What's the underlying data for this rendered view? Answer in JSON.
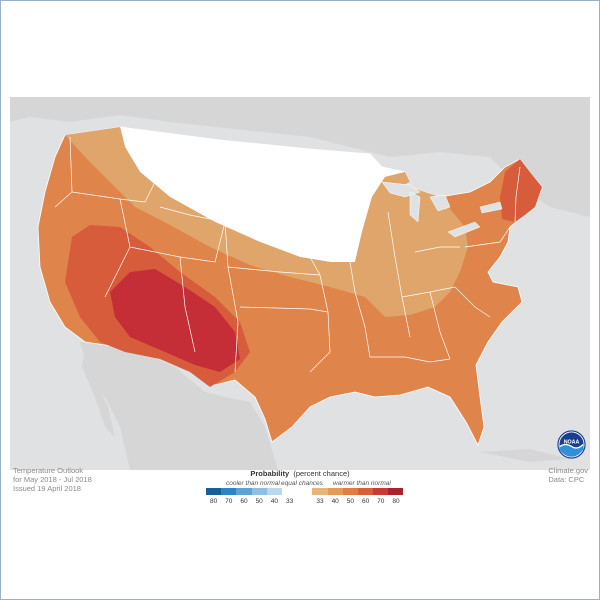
{
  "map": {
    "footer_left": [
      "Temperature Outlook",
      "for May 2018 - Jul 2018",
      "Issued 19 April 2018"
    ],
    "footer_right": [
      "Climate.gov",
      "Data: CPC"
    ],
    "logo_text": "NOAA"
  },
  "legend": {
    "title_bold": "Probability",
    "title_rest": "(percent chance)",
    "cooler_label": "cooler than normal",
    "equal_label": "equal chances",
    "warmer_label": "warmer than normal",
    "ticks": [
      "80",
      "70",
      "60",
      "50",
      "40",
      "33",
      "",
      "33",
      "40",
      "50",
      "60",
      "70",
      "80"
    ],
    "swatches": [
      "#1b5f9a",
      "#2f84c2",
      "#5ea3d4",
      "#8dbfe2",
      "#bad8ee",
      "#ffffff",
      "#ffffff",
      "#e7b47b",
      "#e39a5a",
      "#df7d45",
      "#d85f3b",
      "#c83a33",
      "#a8242c"
    ]
  },
  "colors": {
    "equal_chances": "#ffffff",
    "warm_33_40": "#dfa56b",
    "warm_40_50": "#df844b",
    "warm_50_60": "#d75c3c",
    "warm_60_70": "#c52e36",
    "land_outside": "#d6d6d6",
    "water": "#dfe1e3"
  }
}
